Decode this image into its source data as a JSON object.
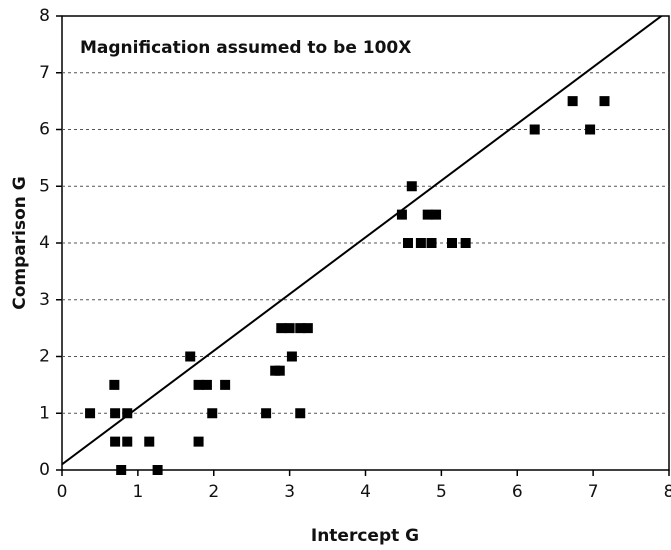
{
  "chart_data": {
    "type": "scatter",
    "annotation": "Magnification assumed to be 100X",
    "xlabel": "Intercept G",
    "ylabel": "Comparison G",
    "xlim": [
      0,
      8
    ],
    "ylim": [
      0,
      8
    ],
    "xticks": [
      0,
      1,
      2,
      3,
      4,
      5,
      6,
      7,
      8
    ],
    "yticks": [
      0,
      1,
      2,
      3,
      4,
      5,
      6,
      7,
      8
    ],
    "grid": true,
    "color": "#000000",
    "x": [
      0.37,
      0.69,
      0.7,
      0.7,
      0.86,
      0.86,
      0.78,
      1.15,
      1.26,
      1.69,
      1.8,
      1.91,
      1.8,
      1.98,
      2.15,
      2.69,
      2.81,
      2.87,
      2.89,
      3.03,
      3.0,
      3.14,
      3.24,
      3.14,
      4.48,
      4.56,
      4.61,
      4.73,
      4.82,
      4.93,
      4.87,
      5.14,
      5.32,
      6.23,
      6.73,
      6.96,
      7.15
    ],
    "values": [
      1,
      1.5,
      1,
      0.5,
      1,
      0.5,
      0,
      0.5,
      0,
      2,
      1.5,
      1.5,
      0.5,
      1,
      1.5,
      1,
      1.75,
      1.75,
      2.5,
      2,
      2.5,
      2.5,
      2.5,
      1,
      4.5,
      4,
      5,
      4,
      4.5,
      4.5,
      4,
      4,
      4,
      6,
      6.5,
      6,
      6.5
    ],
    "reference_line": {
      "x": [
        0,
        8
      ],
      "y": [
        0.1,
        8.1
      ]
    }
  }
}
